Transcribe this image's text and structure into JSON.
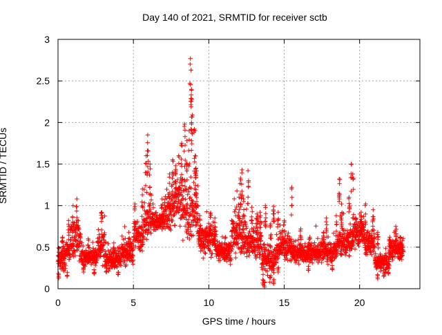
{
  "chart_data": {
    "type": "scatter",
    "title": "Day 140 of 2021, SRMTID for receiver sctb",
    "xlabel": "GPS time / hours",
    "ylabel": "SRMTID / TECUs",
    "xlim": [
      0,
      24
    ],
    "ylim": [
      0,
      3
    ],
    "xticks": [
      0,
      5,
      10,
      15,
      20
    ],
    "yticks": [
      0,
      0.5,
      1,
      1.5,
      2,
      2.5,
      3
    ],
    "ytick_labels": [
      "0",
      "0.5",
      "1",
      "1.5",
      "2",
      "2.5",
      "3"
    ],
    "grid": true,
    "marker": "+",
    "marker_color": "#ff0000",
    "sample_interval_hours": 0.0083,
    "background_bands": [
      [
        0.0,
        0.5,
        0.35,
        0.14
      ],
      [
        0.5,
        0.8,
        0.45,
        0.13
      ],
      [
        0.8,
        1.5,
        0.6,
        0.22
      ],
      [
        1.5,
        2.6,
        0.38,
        0.1
      ],
      [
        2.6,
        3.1,
        0.52,
        0.2
      ],
      [
        3.1,
        4.2,
        0.35,
        0.11
      ],
      [
        4.2,
        5.0,
        0.45,
        0.14
      ],
      [
        5.0,
        5.7,
        0.65,
        0.18
      ],
      [
        5.7,
        6.2,
        0.85,
        0.22
      ],
      [
        6.2,
        7.0,
        0.8,
        0.12
      ],
      [
        7.0,
        7.5,
        0.9,
        0.22
      ],
      [
        7.5,
        8.5,
        1.05,
        0.3
      ],
      [
        8.5,
        9.3,
        0.95,
        0.35
      ],
      [
        9.3,
        10.5,
        0.6,
        0.18
      ],
      [
        10.5,
        11.5,
        0.45,
        0.12
      ],
      [
        11.5,
        12.5,
        0.65,
        0.25
      ],
      [
        12.5,
        13.5,
        0.55,
        0.2
      ],
      [
        13.5,
        14.5,
        0.35,
        0.17
      ],
      [
        14.5,
        15.5,
        0.5,
        0.15
      ],
      [
        15.5,
        17.0,
        0.42,
        0.11
      ],
      [
        17.0,
        18.5,
        0.45,
        0.12
      ],
      [
        18.5,
        19.5,
        0.55,
        0.18
      ],
      [
        19.5,
        20.3,
        0.68,
        0.18
      ],
      [
        20.3,
        21.0,
        0.55,
        0.15
      ],
      [
        21.0,
        22.0,
        0.32,
        0.1
      ],
      [
        22.0,
        22.9,
        0.48,
        0.12
      ]
    ],
    "spikes": [
      [
        0.3,
        0.62
      ],
      [
        0.7,
        0.82
      ],
      [
        1.0,
        1.0
      ],
      [
        1.25,
        1.08
      ],
      [
        2.0,
        0.6
      ],
      [
        2.9,
        0.92
      ],
      [
        3.7,
        0.55
      ],
      [
        4.7,
        0.68
      ],
      [
        5.1,
        1.02
      ],
      [
        5.6,
        1.2
      ],
      [
        5.85,
        1.6
      ],
      [
        5.95,
        1.85
      ],
      [
        6.1,
        1.5
      ],
      [
        6.3,
        1.02
      ],
      [
        6.9,
        1.08
      ],
      [
        7.4,
        1.38
      ],
      [
        7.6,
        1.55
      ],
      [
        7.8,
        1.48
      ],
      [
        8.0,
        1.6
      ],
      [
        8.2,
        1.75
      ],
      [
        8.4,
        1.98
      ],
      [
        8.55,
        1.78
      ],
      [
        8.7,
        1.9
      ],
      [
        8.78,
        2.77
      ],
      [
        8.82,
        2.63
      ],
      [
        8.85,
        2.4
      ],
      [
        8.88,
        2.28
      ],
      [
        9.05,
        1.92
      ],
      [
        9.1,
        1.6
      ],
      [
        9.15,
        1.45
      ],
      [
        9.4,
        0.88
      ],
      [
        10.1,
        0.9
      ],
      [
        10.4,
        0.85
      ],
      [
        11.1,
        0.62
      ],
      [
        11.8,
        0.88
      ],
      [
        12.0,
        1.1
      ],
      [
        12.1,
        1.33
      ],
      [
        12.2,
        1.43
      ],
      [
        12.3,
        1.08
      ],
      [
        12.6,
        1.42
      ],
      [
        12.85,
        0.98
      ],
      [
        13.2,
        0.9
      ],
      [
        13.4,
        0.92
      ],
      [
        13.75,
        1.0
      ],
      [
        14.1,
        0.78
      ],
      [
        14.3,
        0.99
      ],
      [
        14.6,
        0.92
      ],
      [
        15.0,
        0.82
      ],
      [
        15.5,
        1.22
      ],
      [
        16.1,
        0.72
      ],
      [
        16.7,
        0.62
      ],
      [
        17.6,
        0.68
      ],
      [
        17.8,
        0.85
      ],
      [
        18.45,
        0.88
      ],
      [
        18.65,
        1.32
      ],
      [
        18.8,
        1.02
      ],
      [
        19.3,
        1.1
      ],
      [
        19.45,
        1.5
      ],
      [
        19.55,
        1.38
      ],
      [
        19.75,
        0.85
      ],
      [
        20.1,
        0.92
      ],
      [
        20.4,
        1.02
      ],
      [
        20.9,
        0.95
      ],
      [
        21.2,
        0.68
      ],
      [
        22.0,
        0.62
      ],
      [
        22.4,
        0.75
      ],
      [
        22.7,
        0.62
      ]
    ],
    "dips": [
      [
        0.05,
        0.13
      ],
      [
        0.6,
        0.15
      ],
      [
        1.7,
        0.2
      ],
      [
        2.4,
        0.18
      ],
      [
        3.2,
        0.2
      ],
      [
        4.0,
        0.17
      ],
      [
        13.6,
        0.05
      ],
      [
        13.7,
        0.02
      ],
      [
        14.05,
        0.08
      ],
      [
        14.3,
        0.06
      ],
      [
        14.6,
        0.2
      ],
      [
        16.6,
        0.22
      ],
      [
        18.2,
        0.23
      ],
      [
        21.2,
        0.12
      ],
      [
        21.6,
        0.15
      ],
      [
        21.9,
        0.18
      ]
    ]
  }
}
